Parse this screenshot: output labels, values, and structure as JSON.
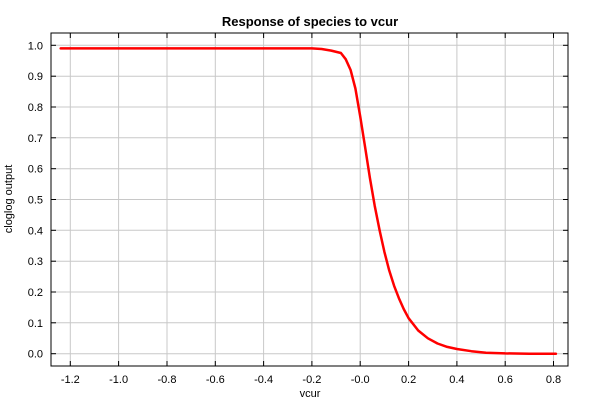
{
  "chart_data": {
    "type": "line",
    "title": "Response of species to vcur",
    "xlabel": "vcur",
    "ylabel": "cloglog output",
    "xlim": [
      -1.28,
      0.86
    ],
    "ylim": [
      -0.04,
      1.04
    ],
    "grid": true,
    "x_ticks": [
      -1.2,
      -1.0,
      -0.8,
      -0.6,
      -0.4,
      -0.2,
      0.0,
      0.2,
      0.4,
      0.6,
      0.8
    ],
    "x_tick_labels": [
      "-1.2",
      "-1.0",
      "-0.8",
      "-0.6",
      "-0.4",
      "-0.2",
      "-0.0",
      "0.2",
      "0.4",
      "0.6",
      "0.8"
    ],
    "y_ticks": [
      0.0,
      0.1,
      0.2,
      0.3,
      0.4,
      0.5,
      0.6,
      0.7,
      0.8,
      0.9,
      1.0
    ],
    "y_tick_labels": [
      "0.0",
      "0.1",
      "0.2",
      "0.3",
      "0.4",
      "0.5",
      "0.6",
      "0.7",
      "0.8",
      "0.9",
      "1.0"
    ],
    "series": [
      {
        "color": "#ff0000",
        "x": [
          -1.24,
          -0.2,
          -0.16,
          -0.12,
          -0.08,
          -0.06,
          -0.04,
          -0.02,
          0.0,
          0.02,
          0.04,
          0.06,
          0.08,
          0.1,
          0.12,
          0.14,
          0.16,
          0.18,
          0.2,
          0.24,
          0.28,
          0.32,
          0.36,
          0.4,
          0.46,
          0.52,
          0.6,
          0.7,
          0.81
        ],
        "y": [
          0.99,
          0.99,
          0.988,
          0.983,
          0.975,
          0.955,
          0.92,
          0.86,
          0.77,
          0.67,
          0.57,
          0.48,
          0.4,
          0.33,
          0.27,
          0.22,
          0.18,
          0.145,
          0.115,
          0.075,
          0.05,
          0.033,
          0.022,
          0.015,
          0.008,
          0.003,
          0.001,
          0.0,
          0.0
        ]
      }
    ]
  }
}
